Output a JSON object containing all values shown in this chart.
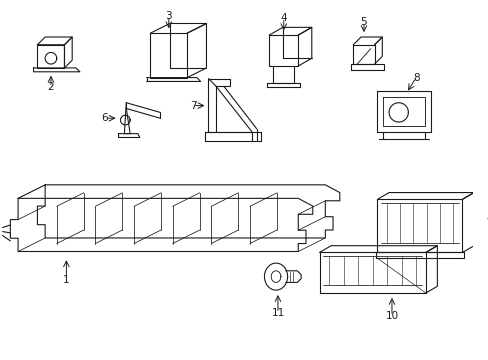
{
  "background_color": "#ffffff",
  "line_color": "#1a1a1a",
  "line_width": 0.8,
  "fig_width": 4.89,
  "fig_height": 3.6,
  "dpi": 100
}
